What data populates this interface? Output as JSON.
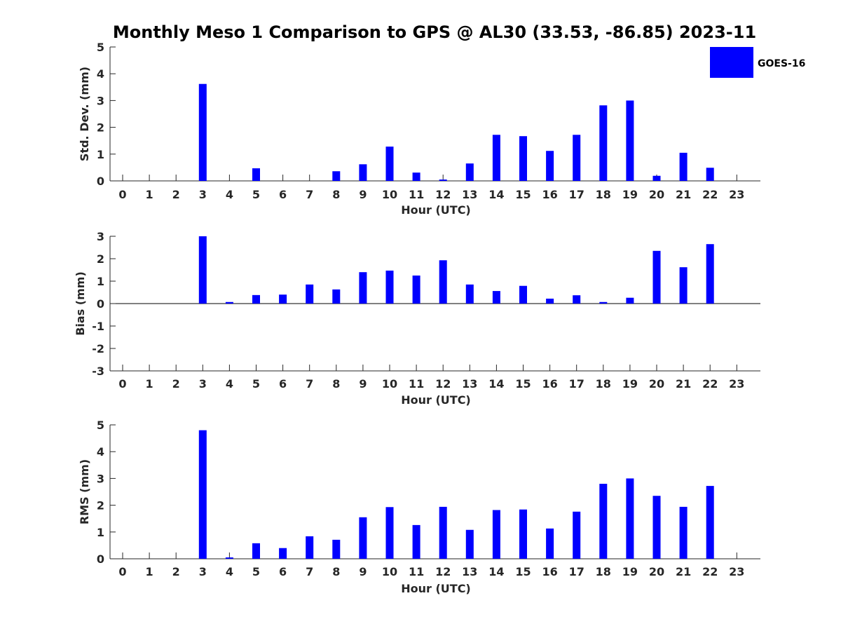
{
  "figure": {
    "title": "Monthly Meso 1 Comparison to GPS @ AL30 (33.53, -86.85) 2023-11"
  },
  "legend": {
    "label": "GOES-16",
    "color": "#0000ff"
  },
  "chart_data": [
    {
      "type": "bar",
      "id": "std",
      "ylabel": "Std. Dev. (mm)",
      "xlabel": "Hour (UTC)",
      "ylim": [
        0,
        5
      ],
      "yticks": [
        0,
        1,
        2,
        3,
        4,
        5
      ],
      "categories": [
        "0",
        "1",
        "2",
        "3",
        "4",
        "5",
        "6",
        "7",
        "8",
        "9",
        "10",
        "11",
        "12",
        "13",
        "14",
        "15",
        "16",
        "17",
        "18",
        "19",
        "20",
        "21",
        "22",
        "23"
      ],
      "series": [
        {
          "name": "GOES-16",
          "values": [
            null,
            null,
            null,
            3.62,
            null,
            0.47,
            null,
            null,
            0.36,
            0.62,
            1.28,
            0.31,
            0.05,
            0.65,
            1.72,
            1.67,
            1.12,
            1.72,
            2.82,
            3.0,
            0.19,
            1.05,
            0.49,
            null
          ]
        }
      ]
    },
    {
      "type": "bar",
      "id": "bias",
      "ylabel": "Bias (mm)",
      "xlabel": "Hour (UTC)",
      "ylim": [
        -3,
        3
      ],
      "yticks": [
        -3,
        -2,
        -1,
        0,
        1,
        2,
        3
      ],
      "categories": [
        "0",
        "1",
        "2",
        "3",
        "4",
        "5",
        "6",
        "7",
        "8",
        "9",
        "10",
        "11",
        "12",
        "13",
        "14",
        "15",
        "16",
        "17",
        "18",
        "19",
        "20",
        "21",
        "22",
        "23"
      ],
      "series": [
        {
          "name": "GOES-16",
          "values": [
            null,
            null,
            null,
            3.0,
            0.07,
            0.38,
            0.4,
            0.85,
            0.63,
            1.4,
            1.47,
            1.25,
            1.93,
            0.85,
            0.56,
            0.79,
            0.22,
            0.37,
            0.07,
            0.26,
            2.35,
            1.62,
            2.65,
            null
          ]
        }
      ]
    },
    {
      "type": "bar",
      "id": "rms",
      "ylabel": "RMS (mm)",
      "xlabel": "Hour (UTC)",
      "ylim": [
        0,
        5
      ],
      "yticks": [
        0,
        1,
        2,
        3,
        4,
        5
      ],
      "categories": [
        "0",
        "1",
        "2",
        "3",
        "4",
        "5",
        "6",
        "7",
        "8",
        "9",
        "10",
        "11",
        "12",
        "13",
        "14",
        "15",
        "16",
        "17",
        "18",
        "19",
        "20",
        "21",
        "22",
        "23"
      ],
      "series": [
        {
          "name": "GOES-16",
          "values": [
            null,
            null,
            null,
            4.8,
            0.05,
            0.58,
            0.4,
            0.84,
            0.71,
            1.55,
            1.93,
            1.26,
            1.94,
            1.08,
            1.82,
            1.84,
            1.13,
            1.76,
            2.8,
            3.0,
            2.35,
            1.94,
            2.72,
            null
          ]
        }
      ]
    }
  ]
}
